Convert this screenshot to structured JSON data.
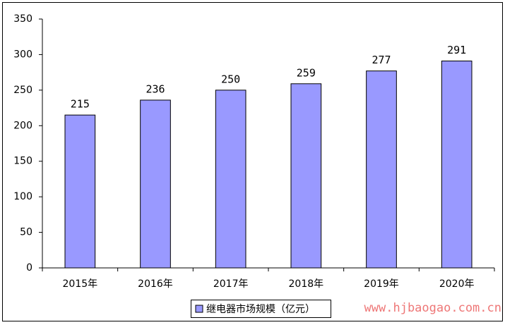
{
  "chart_data": {
    "type": "bar",
    "categories": [
      "2015年",
      "2016年",
      "2017年",
      "2018年",
      "2019年",
      "2020年"
    ],
    "series": [
      {
        "name": "继电器市场规模（亿元）",
        "color": "#9999ff",
        "values": [
          215,
          236,
          250,
          259,
          277,
          291
        ]
      }
    ],
    "ylim": [
      0,
      350
    ],
    "yticks": [
      0,
      50,
      100,
      150,
      200,
      250,
      300,
      350
    ],
    "grid": false,
    "legend": "bottom",
    "data_labels": true,
    "watermark": "www.hjbaogao.com.cn"
  }
}
